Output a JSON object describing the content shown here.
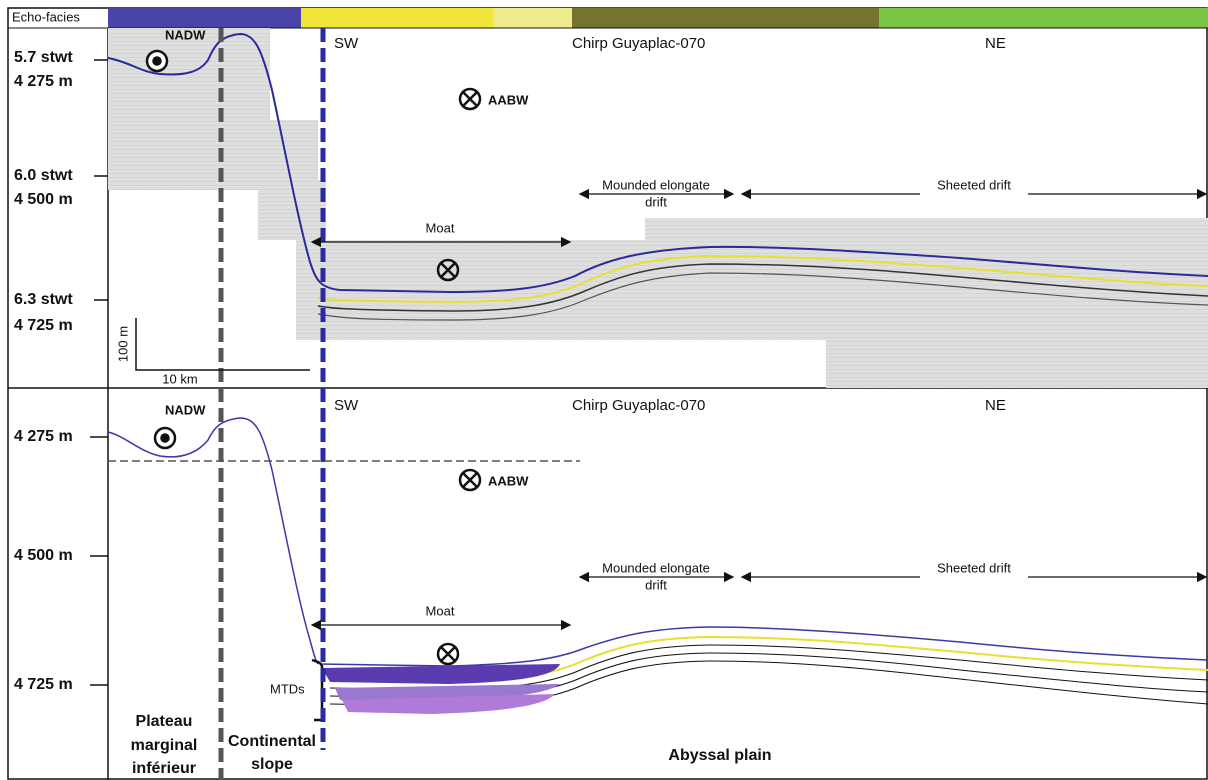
{
  "echo_facies": {
    "label": "Echo-facies"
  },
  "top_panel": {
    "depth_labels": [
      {
        "twt": "5.7 stwt",
        "depth": "4 275 m"
      },
      {
        "twt": "6.0 stwt",
        "depth": "4 500 m"
      },
      {
        "twt": "6.3 stwt",
        "depth": "4 725 m"
      }
    ],
    "scale": {
      "vertical": "100 m",
      "horizontal": "10 km"
    },
    "water_masses": [
      "NADW",
      "AABW"
    ],
    "profile": {
      "start": "SW",
      "name": "Chirp Guyaplac-070",
      "end": "NE"
    },
    "features": {
      "mounded": [
        "Mounded elongate",
        "drift"
      ],
      "sheeted": "Sheeted drift",
      "moat": "Moat"
    }
  },
  "bottom_panel": {
    "depth_labels": [
      "4 275 m",
      "4 500 m",
      "4 725 m"
    ],
    "water_masses": [
      "NADW",
      "AABW"
    ],
    "profile": {
      "start": "SW",
      "name": "Chirp Guyaplac-070",
      "end": "NE"
    },
    "features": {
      "mounded": [
        "Mounded elongate",
        "drift"
      ],
      "sheeted": "Sheeted drift",
      "moat": "Moat"
    },
    "mtds": "MTDs",
    "provinces": {
      "plateau": [
        "Plateau",
        "marginal",
        "inférieur"
      ],
      "slope": [
        "Continental",
        "slope"
      ],
      "abyssal": "Abyssal plain"
    }
  }
}
